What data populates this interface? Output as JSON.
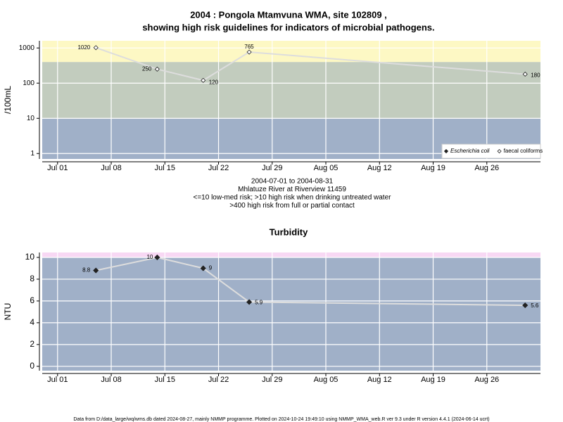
{
  "chart_data": [
    {
      "type": "line",
      "title": [
        "2004 : Pongola Mtamvuna WMA, site 102809 ,",
        "showing high risk guidelines for indicators of microbial pathogens."
      ],
      "ylabel": "/100mL",
      "log_scale": true,
      "grid": true,
      "legend": "bottom-right",
      "line_color": "#dddddd",
      "x": [
        "2004-07-06",
        "2004-07-14",
        "2004-07-20",
        "2004-07-26",
        "2004-08-31"
      ],
      "series": [
        {
          "name": "Escherichia coli",
          "color": "#222222",
          "marker": "filled",
          "values": [
            null,
            null,
            null,
            null,
            null
          ]
        },
        {
          "name": "faecal coliforms",
          "color": "#222222",
          "marker": "open",
          "values": [
            1020,
            250,
            120,
            765,
            180
          ]
        }
      ],
      "bands": [
        {
          "from": 0.7,
          "to": 10,
          "color": "#a0b0c8"
        },
        {
          "from": 10,
          "to": 400,
          "color": "#c2ccbe"
        },
        {
          "from": 400,
          "to": 1600,
          "color": "#fdf8c4"
        }
      ],
      "xlim": [
        "2004-06-29",
        "2004-09-02"
      ],
      "xticks": [
        {
          "value": "2004-07-01",
          "label": "Jul 01"
        },
        {
          "value": "2004-07-08",
          "label": "Jul 08"
        },
        {
          "value": "2004-07-15",
          "label": "Jul 15"
        },
        {
          "value": "2004-07-22",
          "label": "Jul 22"
        },
        {
          "value": "2004-07-29",
          "label": "Jul 29"
        },
        {
          "value": "2004-08-05",
          "label": "Aug 05"
        },
        {
          "value": "2004-08-12",
          "label": "Aug 12"
        },
        {
          "value": "2004-08-19",
          "label": "Aug 19"
        },
        {
          "value": "2004-08-26",
          "label": "Aug 26"
        }
      ],
      "ylim": [
        0.7,
        1600
      ],
      "yticks": [
        1,
        10,
        100,
        1000
      ],
      "annotations": [
        "2004-07-01 to 2004-08-31",
        "Mhlatuze River at Riverview 11459",
        "<=10 low-med risk; >10 high risk when drinking untreated water",
        ">400 high risk from full or partial contact"
      ]
    },
    {
      "type": "line",
      "title": [
        "Turbidity"
      ],
      "ylabel": "NTU",
      "log_scale": false,
      "grid": true,
      "line_color": "#dddddd",
      "x": [
        "2004-07-06",
        "2004-07-14",
        "2004-07-20",
        "2004-07-26",
        "2004-08-31"
      ],
      "series": [
        {
          "color": "#222222",
          "marker": "filled",
          "values": [
            8.8,
            10,
            9,
            5.9,
            5.6
          ]
        }
      ],
      "bands": [
        {
          "from": -0.4,
          "to": 10,
          "color": "#a0b0c8"
        },
        {
          "from": 10,
          "to": 10.45,
          "color": "#f8d8f4"
        }
      ],
      "xlim": [
        "2004-06-29",
        "2004-09-02"
      ],
      "xticks": [
        {
          "value": "2004-07-01",
          "label": "Jul 01"
        },
        {
          "value": "2004-07-08",
          "label": "Jul 08"
        },
        {
          "value": "2004-07-15",
          "label": "Jul 15"
        },
        {
          "value": "2004-07-22",
          "label": "Jul 22"
        },
        {
          "value": "2004-07-29",
          "label": "Jul 29"
        },
        {
          "value": "2004-08-05",
          "label": "Aug 05"
        },
        {
          "value": "2004-08-12",
          "label": "Aug 12"
        },
        {
          "value": "2004-08-19",
          "label": "Aug 19"
        },
        {
          "value": "2004-08-26",
          "label": "Aug 26"
        }
      ],
      "ylim": [
        -0.4,
        10.45
      ],
      "yticks": [
        0,
        2,
        4,
        6,
        8,
        10
      ]
    }
  ],
  "footer": "Data from D:/data_large/wq/wms.db dated 2024-08-27, mainly NMMP programme. Plotted on 2024-10-24 19:49:10 using NMMP_WMA_web.R ver 9.3 under R version 4.4.1 (2024-06-14 ucrt)"
}
